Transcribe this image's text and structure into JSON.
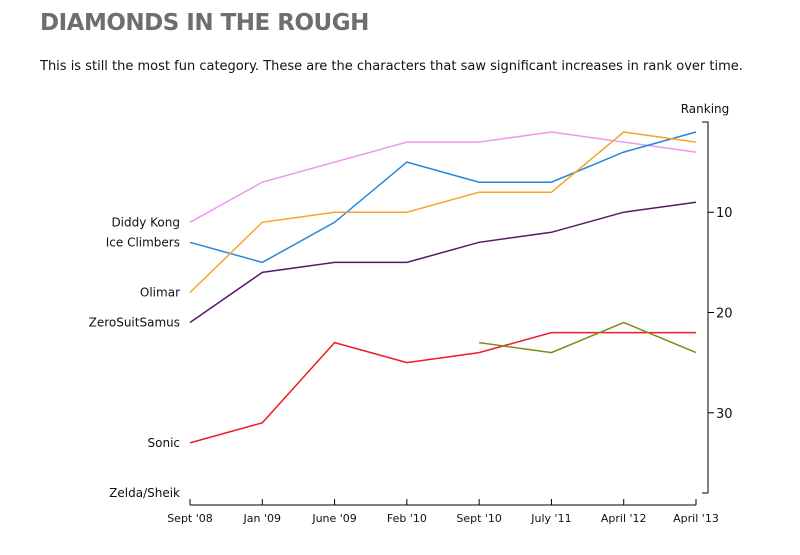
{
  "page": {
    "title": "DIAMONDS IN THE ROUGH",
    "subtitle": "This is still the most fun category. These are the characters that saw significant increases in rank over time."
  },
  "chart_data": {
    "type": "line",
    "title": "DIAMONDS IN THE ROUGH",
    "xlabel": "",
    "ylabel": "Ranking",
    "ylim": [
      1,
      38
    ],
    "y_inverted": true,
    "y_axis_side": "right",
    "grid": false,
    "legend": "inline labels at left",
    "categories": [
      "Sept '08",
      "Jan '09",
      "June '09",
      "Feb '10",
      "Sept '10",
      "July '11",
      "April '12",
      "April '13"
    ],
    "yticks": [
      10,
      20,
      30
    ],
    "series": [
      {
        "name": "Diddy Kong",
        "color": "#ee99ee",
        "values": [
          11,
          7,
          5,
          3,
          3,
          2,
          3,
          4
        ]
      },
      {
        "name": "Ice Climbers",
        "color": "#2288dd",
        "values": [
          13,
          15,
          11,
          5,
          7,
          7,
          4,
          2
        ]
      },
      {
        "name": "Olimar",
        "color": "#f5a623",
        "values": [
          18,
          11,
          10,
          10,
          8,
          8,
          2,
          3
        ]
      },
      {
        "name": "ZeroSuitSamus",
        "color": "#551a66",
        "values": [
          21,
          16,
          15,
          15,
          13,
          12,
          10,
          9
        ]
      },
      {
        "name": "Sonic",
        "color": "#ee1c25",
        "values": [
          33,
          31,
          23,
          25,
          24,
          22,
          22,
          22
        ]
      },
      {
        "name": "Zelda/Sheik",
        "color": "#8b8612",
        "values": [
          null,
          null,
          null,
          null,
          23,
          24,
          21,
          24
        ]
      }
    ]
  }
}
